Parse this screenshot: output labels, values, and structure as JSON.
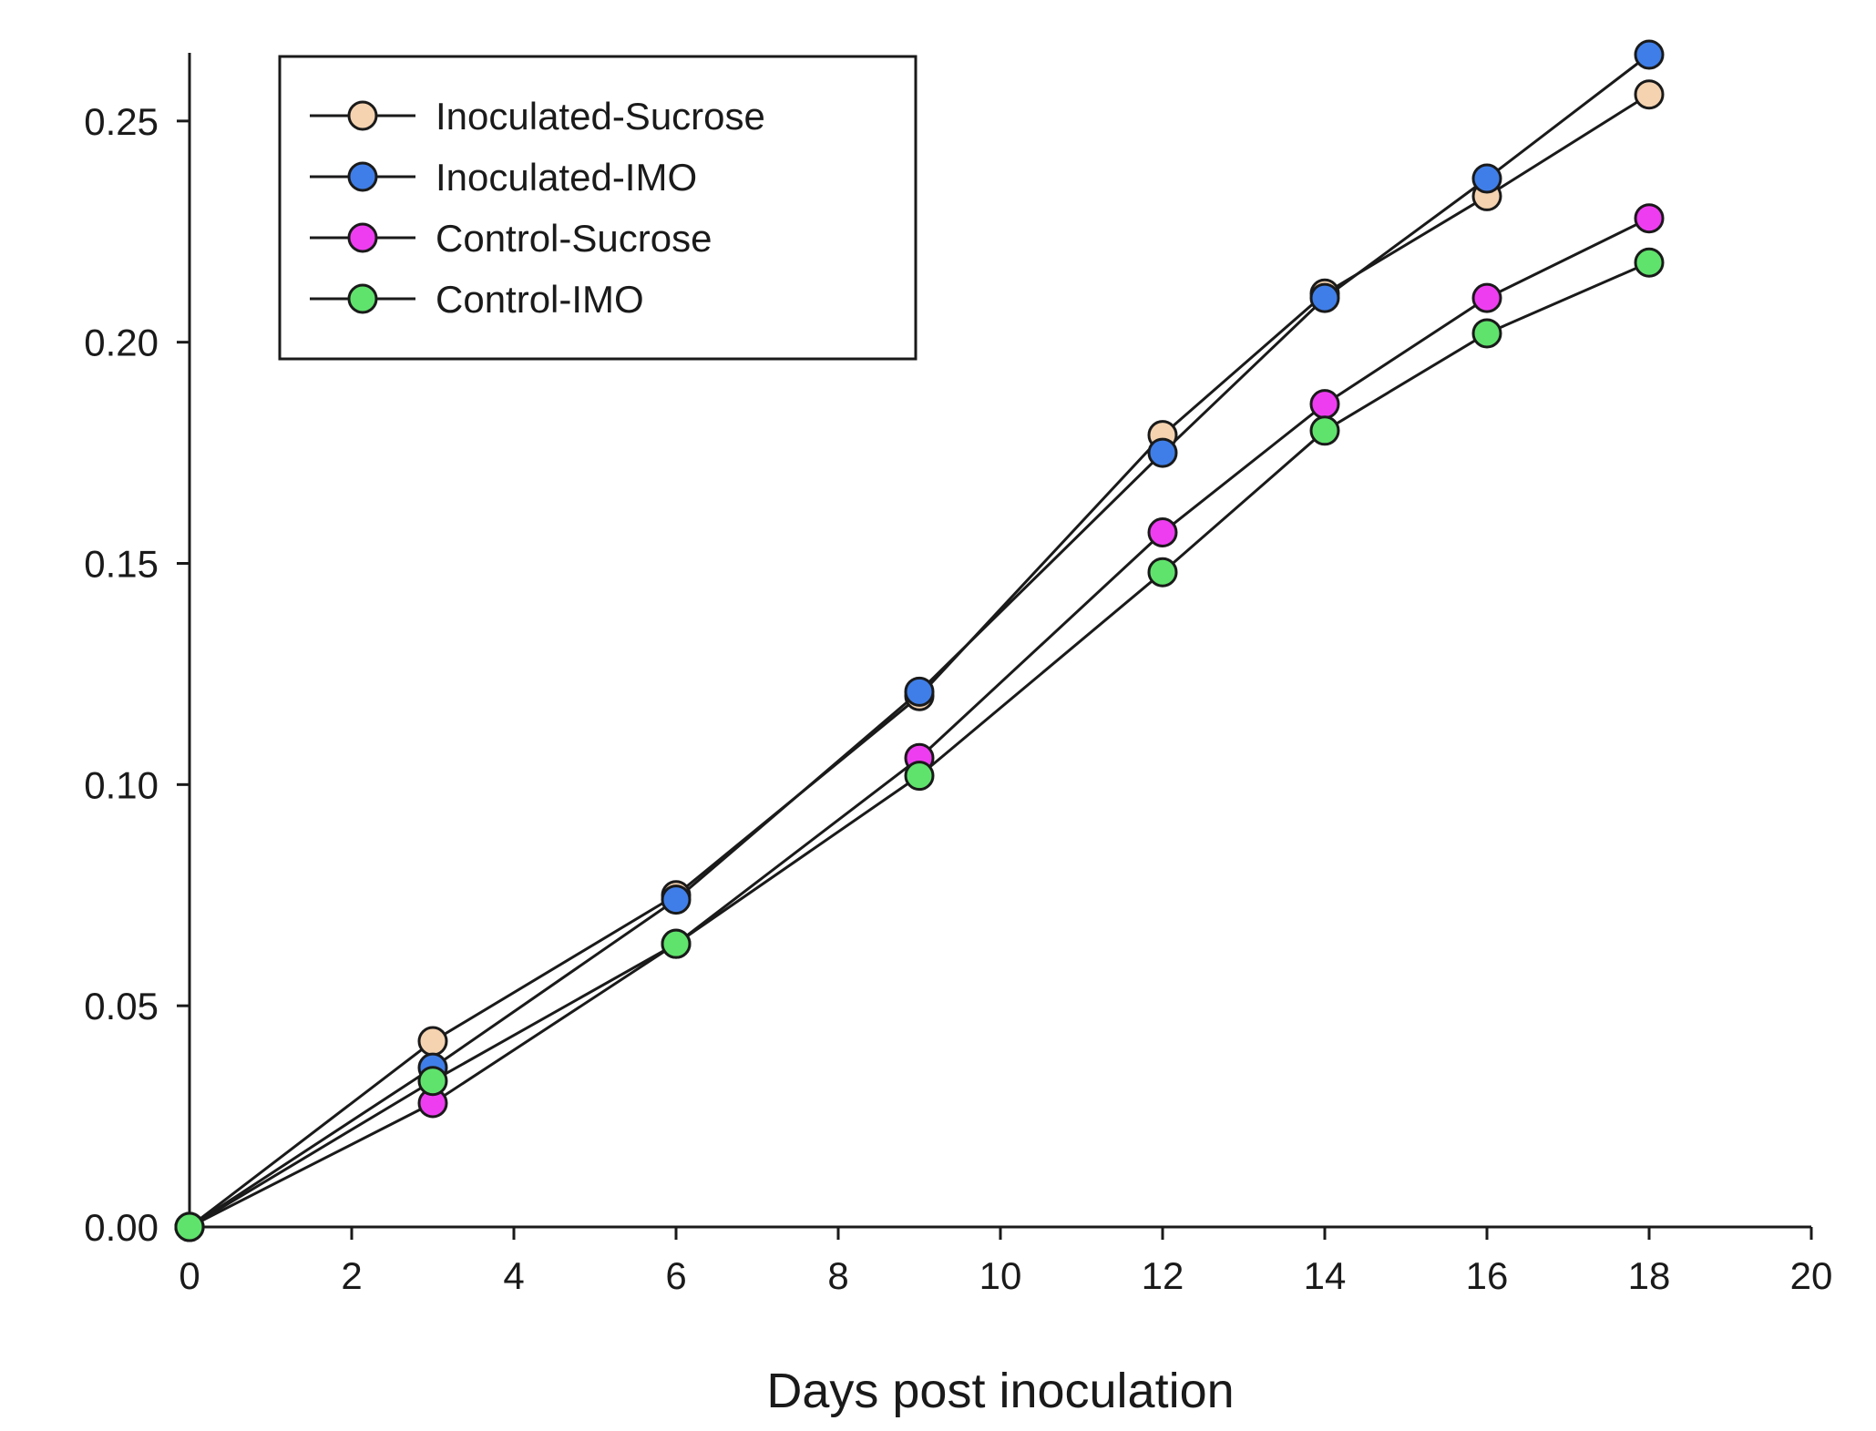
{
  "chart_data": {
    "type": "line",
    "title": "",
    "xlabel": "Days post inoculation",
    "ylabel": "",
    "xlim": [
      0,
      20
    ],
    "ylim": [
      0,
      0.265
    ],
    "x_ticks": [
      "0",
      "2",
      "4",
      "6",
      "8",
      "10",
      "12",
      "14",
      "16",
      "18",
      "20"
    ],
    "y_ticks": [
      "0.00",
      "0.05",
      "0.10",
      "0.15",
      "0.20",
      "0.25"
    ],
    "grid": false,
    "legend_position": "top-left",
    "x": [
      0,
      3,
      6,
      9,
      12,
      14,
      16,
      18
    ],
    "series": [
      {
        "name": "Inoculated-Sucrose",
        "color": "#f5d3b0",
        "values": [
          0,
          0.042,
          0.075,
          0.12,
          0.179,
          0.211,
          0.233,
          0.256
        ]
      },
      {
        "name": "Inoculated-IMO",
        "color": "#3f7ee8",
        "values": [
          0,
          0.036,
          0.074,
          0.121,
          0.175,
          0.21,
          0.237,
          0.265
        ]
      },
      {
        "name": "Control-Sucrose",
        "color": "#ee3df0",
        "values": [
          0,
          0.028,
          0.064,
          0.106,
          0.157,
          0.186,
          0.21,
          0.228
        ]
      },
      {
        "name": "Control-IMO",
        "color": "#5fe36c",
        "values": [
          0,
          0.033,
          0.064,
          0.102,
          0.148,
          0.18,
          0.202,
          0.218
        ]
      }
    ]
  }
}
